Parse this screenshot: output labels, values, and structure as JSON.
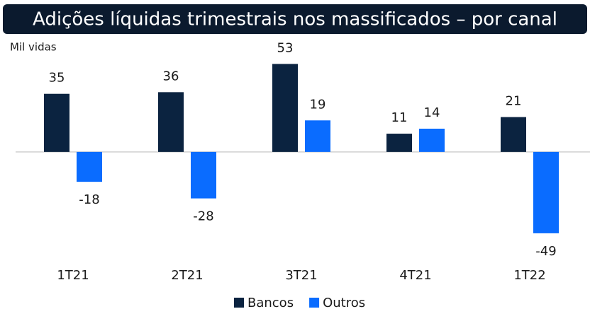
{
  "chart_data": {
    "type": "bar",
    "title": "Adições líquidas trimestrais nos massificados – por canal",
    "subtitle": "Mil vidas",
    "categories": [
      "1T21",
      "2T21",
      "3T21",
      "4T21",
      "1T22"
    ],
    "series": [
      {
        "name": "Bancos",
        "color": "#0b2340",
        "values": [
          35,
          36,
          53,
          11,
          21
        ]
      },
      {
        "name": "Outros",
        "color": "#0a6cff",
        "values": [
          -18,
          -28,
          19,
          14,
          -49
        ]
      }
    ],
    "ylim": [
      -55,
      60
    ],
    "legend": "bottom"
  }
}
